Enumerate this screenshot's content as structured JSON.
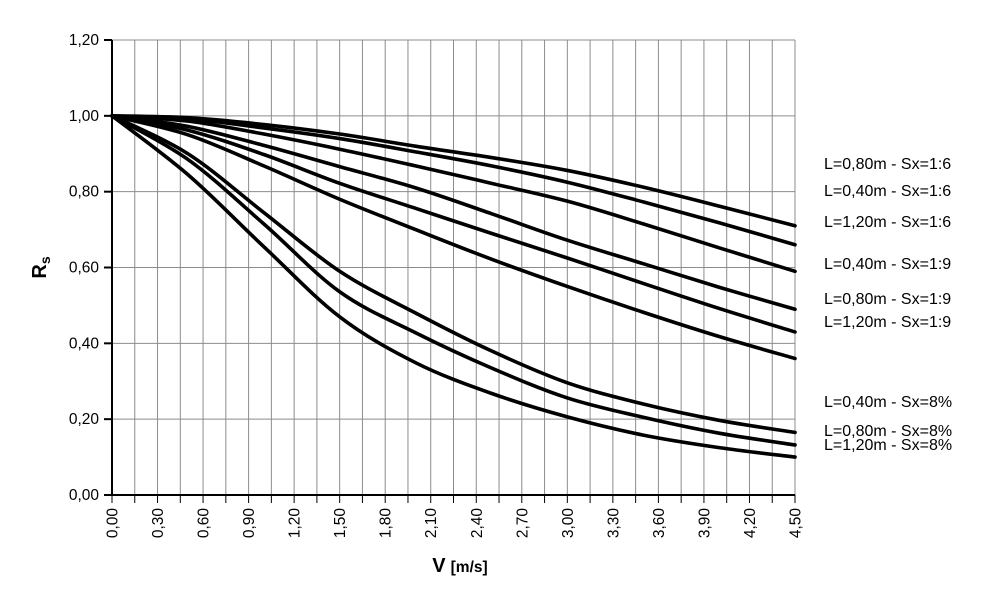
{
  "chart_data": {
    "type": "line",
    "title": "",
    "xlabel": "V [m/s]",
    "xlabel_main": "V",
    "xlabel_unit": "[m/s]",
    "ylabel": "Rs",
    "ylabel_base": "R",
    "ylabel_sub": "s",
    "xlim": [
      0.0,
      4.5
    ],
    "ylim": [
      0.0,
      1.2
    ],
    "x_major_step": 0.3,
    "x_minor_step": 0.15,
    "y_major_step": 0.2,
    "grid": {
      "vertical": true,
      "vertical_every": 0.15,
      "horizontal": true,
      "horizontal_every": 0.2,
      "color": "#8c8c8c"
    },
    "axis_color": "#000000",
    "curve_color": "#000000",
    "legend_position": "right",
    "x_tick_labels": [
      "0,00",
      "0,30",
      "0,60",
      "0,90",
      "1,20",
      "1,50",
      "1,80",
      "2,10",
      "2,40",
      "2,70",
      "3,00",
      "3,30",
      "3,60",
      "3,90",
      "4,20",
      "4,50"
    ],
    "y_tick_labels": [
      "0,00",
      "0,20",
      "0,40",
      "0,60",
      "0,80",
      "1,00",
      "1,20"
    ],
    "x_sample": [
      0.0,
      0.5,
      1.0,
      1.5,
      2.0,
      2.5,
      3.0,
      3.5,
      4.0,
      4.5
    ],
    "series": [
      {
        "label": "L=0,80m - Sx=1:6",
        "L": "0,80m",
        "Sx": "1:6",
        "y": [
          1.0,
          0.995,
          0.977,
          0.952,
          0.92,
          0.89,
          0.856,
          0.812,
          0.762,
          0.71
        ]
      },
      {
        "label": "L=0,40m - Sx=1:6",
        "L": "0,40m",
        "Sx": "1:6",
        "y": [
          1.0,
          0.992,
          0.968,
          0.94,
          0.905,
          0.868,
          0.825,
          0.773,
          0.718,
          0.66
        ]
      },
      {
        "label": "L=1,20m - Sx=1:6",
        "L": "1,20m",
        "Sx": "1:6",
        "y": [
          1.0,
          0.986,
          0.952,
          0.912,
          0.868,
          0.822,
          0.775,
          0.715,
          0.652,
          0.59
        ]
      },
      {
        "label": "L=0,40m - Sx=1:9",
        "L": "0,40m",
        "Sx": "1:9",
        "y": [
          1.0,
          0.972,
          0.922,
          0.866,
          0.81,
          0.742,
          0.672,
          0.61,
          0.548,
          0.49
        ]
      },
      {
        "label": "L=0,80m - Sx=1:9",
        "L": "0,80m",
        "Sx": "1:9",
        "y": [
          1.0,
          0.962,
          0.898,
          0.822,
          0.756,
          0.69,
          0.625,
          0.558,
          0.492,
          0.43
        ]
      },
      {
        "label": "L=1,20m - Sx=1:9",
        "L": "1,20m",
        "Sx": "1:9",
        "y": [
          1.0,
          0.95,
          0.868,
          0.78,
          0.7,
          0.622,
          0.55,
          0.482,
          0.418,
          0.36
        ]
      },
      {
        "label": "L=0,40m - Sx=8%",
        "L": "0,40m",
        "Sx": "8%",
        "y": [
          1.0,
          0.9,
          0.745,
          0.59,
          0.48,
          0.38,
          0.296,
          0.24,
          0.197,
          0.165
        ]
      },
      {
        "label": "L=0,80m - Sx=8%",
        "L": "0,80m",
        "Sx": "8%",
        "y": [
          1.0,
          0.885,
          0.715,
          0.536,
          0.428,
          0.335,
          0.256,
          0.205,
          0.163,
          0.132
        ]
      },
      {
        "label": "L=1,20m - Sx=8%",
        "L": "1,20m",
        "Sx": "8%",
        "y": [
          1.0,
          0.845,
          0.655,
          0.47,
          0.349,
          0.268,
          0.206,
          0.158,
          0.125,
          0.1
        ]
      }
    ]
  }
}
